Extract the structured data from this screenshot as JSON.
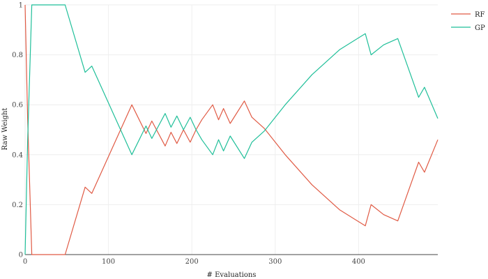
{
  "chart_data": {
    "type": "line",
    "xlabel": "# Evaluations",
    "ylabel": "Raw Weight",
    "xlim": [
      0,
      495
    ],
    "ylim": [
      0,
      1
    ],
    "x_ticks": [
      0,
      100,
      200,
      300,
      400
    ],
    "y_ticks": [
      0,
      0.2,
      0.4,
      0.6,
      0.8,
      1
    ],
    "x_tick_labels": [
      "0",
      "100",
      "200",
      "300",
      "400"
    ],
    "y_tick_labels": [
      "0",
      "0.2",
      "0.4",
      "0.6",
      "0.8",
      "1"
    ],
    "grid": true,
    "legend_position": "top-right",
    "series": [
      {
        "name": "RF",
        "color": "#e05a44",
        "x": [
          0,
          3,
          8,
          48,
          72,
          80,
          128,
          145,
          152,
          168,
          175,
          182,
          190,
          198,
          205,
          212,
          225,
          232,
          238,
          246,
          263,
          272,
          287,
          312,
          344,
          377,
          408,
          415,
          430,
          447,
          472,
          479,
          495
        ],
        "y": [
          1,
          0.55,
          0,
          0,
          0.27,
          0.245,
          0.6,
          0.485,
          0.535,
          0.435,
          0.49,
          0.445,
          0.5,
          0.45,
          0.5,
          0.54,
          0.6,
          0.54,
          0.585,
          0.525,
          0.615,
          0.55,
          0.505,
          0.4,
          0.28,
          0.18,
          0.115,
          0.2,
          0.16,
          0.135,
          0.37,
          0.33,
          0.46
        ]
      },
      {
        "name": "GP",
        "color": "#1fbf99",
        "x": [
          0,
          3,
          8,
          48,
          72,
          80,
          128,
          145,
          152,
          168,
          175,
          182,
          190,
          198,
          205,
          212,
          225,
          232,
          238,
          246,
          263,
          272,
          287,
          312,
          344,
          377,
          408,
          415,
          430,
          447,
          472,
          479,
          495
        ],
        "y": [
          0,
          0.45,
          1,
          1,
          0.73,
          0.755,
          0.4,
          0.515,
          0.465,
          0.565,
          0.51,
          0.555,
          0.5,
          0.55,
          0.5,
          0.46,
          0.4,
          0.46,
          0.415,
          0.475,
          0.385,
          0.45,
          0.495,
          0.6,
          0.72,
          0.82,
          0.885,
          0.8,
          0.84,
          0.865,
          0.63,
          0.67,
          0.545
        ]
      }
    ]
  }
}
